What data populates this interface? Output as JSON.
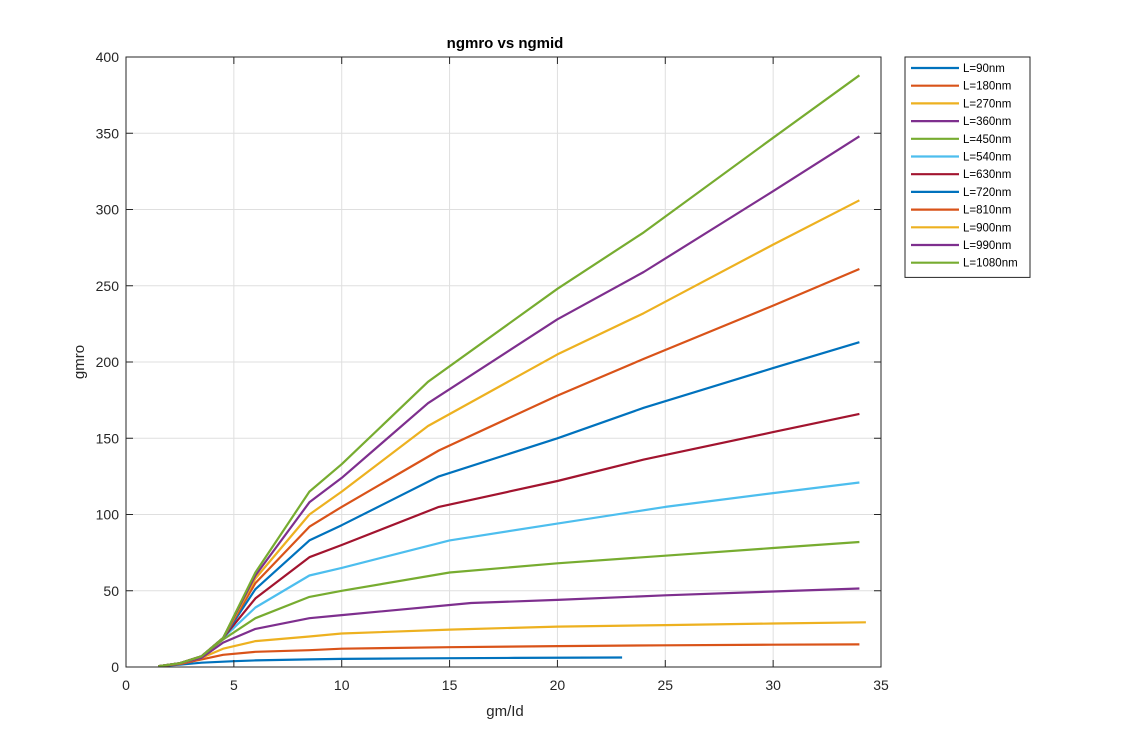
{
  "chart_data": {
    "type": "line",
    "title": "ngmro vs ngmid",
    "xlabel": "gm/Id",
    "ylabel": "gmro",
    "xlim": [
      0,
      35
    ],
    "ylim": [
      0,
      400
    ],
    "xticks": [
      0,
      5,
      10,
      15,
      20,
      25,
      30,
      35
    ],
    "yticks": [
      0,
      50,
      100,
      150,
      200,
      250,
      300,
      350,
      400
    ],
    "xtick_labels": [
      "0",
      "5",
      "10",
      "15",
      "20",
      "25",
      "30",
      "35"
    ],
    "ytick_labels": [
      "0",
      "50",
      "100",
      "150",
      "200",
      "250",
      "300",
      "350",
      "400"
    ],
    "grid": true,
    "legend_position": "outside-top-right",
    "series": [
      {
        "name": "L=90nm",
        "color": "#0072BD",
        "points": [
          [
            1.5,
            0.5
          ],
          [
            2.5,
            1.5
          ],
          [
            3.5,
            2.8
          ],
          [
            5,
            3.8
          ],
          [
            6,
            4.3
          ],
          [
            8.5,
            5
          ],
          [
            10,
            5.3
          ],
          [
            14,
            5.7
          ],
          [
            18,
            6
          ],
          [
            23,
            6.2
          ]
        ]
      },
      {
        "name": "L=180nm",
        "color": "#D95319",
        "points": [
          [
            1.5,
            0.5
          ],
          [
            2.5,
            2
          ],
          [
            3.5,
            5
          ],
          [
            4.5,
            8
          ],
          [
            6,
            10
          ],
          [
            8.5,
            11
          ],
          [
            10,
            12
          ],
          [
            15,
            13
          ],
          [
            20,
            13.7
          ],
          [
            25,
            14.2
          ],
          [
            30,
            14.6
          ],
          [
            34,
            14.8
          ]
        ]
      },
      {
        "name": "L=270nm",
        "color": "#EDB120",
        "points": [
          [
            1.5,
            0.5
          ],
          [
            2.5,
            2.5
          ],
          [
            3.5,
            6
          ],
          [
            4.5,
            12
          ],
          [
            6,
            17
          ],
          [
            8.5,
            20
          ],
          [
            10,
            22
          ],
          [
            15,
            24.5
          ],
          [
            20,
            26.5
          ],
          [
            25,
            27.5
          ],
          [
            30,
            28.5
          ],
          [
            34.3,
            29.3
          ]
        ]
      },
      {
        "name": "L=360nm",
        "color": "#7E2F8E",
        "points": [
          [
            1.5,
            0.5
          ],
          [
            2.5,
            2.5
          ],
          [
            3.5,
            6
          ],
          [
            4.5,
            16
          ],
          [
            6,
            25
          ],
          [
            8.5,
            32
          ],
          [
            10,
            34
          ],
          [
            16,
            42
          ],
          [
            20,
            44
          ],
          [
            25,
            47
          ],
          [
            30,
            49.5
          ],
          [
            34,
            51.5
          ]
        ]
      },
      {
        "name": "L=450nm",
        "color": "#77AC30",
        "points": [
          [
            1.5,
            0.5
          ],
          [
            2.5,
            2.5
          ],
          [
            3.5,
            7
          ],
          [
            4.5,
            18
          ],
          [
            6,
            32
          ],
          [
            8.5,
            46
          ],
          [
            10,
            50
          ],
          [
            15,
            62
          ],
          [
            20,
            68
          ],
          [
            25,
            73
          ],
          [
            30,
            78
          ],
          [
            34,
            82
          ]
        ]
      },
      {
        "name": "L=540nm",
        "color": "#4DBEEE",
        "points": [
          [
            1.5,
            0.5
          ],
          [
            2.5,
            2.5
          ],
          [
            3.5,
            7
          ],
          [
            4.5,
            19
          ],
          [
            6,
            39
          ],
          [
            8.5,
            60
          ],
          [
            10,
            65
          ],
          [
            15,
            83
          ],
          [
            20,
            94
          ],
          [
            25,
            105
          ],
          [
            30,
            114
          ],
          [
            34,
            121
          ]
        ]
      },
      {
        "name": "L=630nm",
        "color": "#A2142F",
        "points": [
          [
            1.5,
            0.5
          ],
          [
            2.5,
            2.5
          ],
          [
            3.5,
            7
          ],
          [
            4.5,
            19
          ],
          [
            6,
            45
          ],
          [
            8.5,
            72
          ],
          [
            10,
            80
          ],
          [
            14.5,
            105
          ],
          [
            20,
            122
          ],
          [
            24,
            136
          ],
          [
            30,
            154
          ],
          [
            34,
            166
          ]
        ]
      },
      {
        "name": "L=720nm",
        "color": "#0072BD",
        "points": [
          [
            1.5,
            0.5
          ],
          [
            2.5,
            2.5
          ],
          [
            3.5,
            7
          ],
          [
            4.5,
            19
          ],
          [
            6,
            51
          ],
          [
            8.5,
            83
          ],
          [
            10,
            93
          ],
          [
            14.5,
            125
          ],
          [
            20,
            150
          ],
          [
            24,
            170
          ],
          [
            30,
            196
          ],
          [
            34,
            213
          ]
        ]
      },
      {
        "name": "L=810nm",
        "color": "#D95319",
        "points": [
          [
            1.5,
            0.5
          ],
          [
            2.5,
            2.5
          ],
          [
            3.5,
            7
          ],
          [
            4.5,
            19
          ],
          [
            6,
            55
          ],
          [
            8.5,
            92
          ],
          [
            10,
            105
          ],
          [
            14.5,
            142
          ],
          [
            20,
            178
          ],
          [
            24,
            202
          ],
          [
            30,
            237
          ],
          [
            34,
            261
          ]
        ]
      },
      {
        "name": "L=900nm",
        "color": "#EDB120",
        "points": [
          [
            1.5,
            0.5
          ],
          [
            2.5,
            2.5
          ],
          [
            3.5,
            7
          ],
          [
            4.5,
            19
          ],
          [
            6,
            58
          ],
          [
            8.5,
            100
          ],
          [
            10,
            115
          ],
          [
            14,
            158
          ],
          [
            20,
            205
          ],
          [
            24,
            232
          ],
          [
            30,
            277
          ],
          [
            34,
            306
          ]
        ]
      },
      {
        "name": "L=990nm",
        "color": "#7E2F8E",
        "points": [
          [
            1.5,
            0.5
          ],
          [
            2.5,
            2.5
          ],
          [
            3.5,
            7
          ],
          [
            4.5,
            19
          ],
          [
            6,
            60
          ],
          [
            8.5,
            108
          ],
          [
            10,
            124
          ],
          [
            14,
            173
          ],
          [
            20,
            228
          ],
          [
            24,
            259
          ],
          [
            30,
            312
          ],
          [
            34,
            348
          ]
        ]
      },
      {
        "name": "L=1080nm",
        "color": "#77AC30",
        "points": [
          [
            1.5,
            0.5
          ],
          [
            2.5,
            2.5
          ],
          [
            3.5,
            7
          ],
          [
            4.5,
            19
          ],
          [
            6,
            62
          ],
          [
            8.5,
            115
          ],
          [
            10,
            133
          ],
          [
            14,
            187
          ],
          [
            20,
            248
          ],
          [
            24,
            285
          ],
          [
            30,
            347
          ],
          [
            34,
            388
          ]
        ]
      }
    ]
  }
}
